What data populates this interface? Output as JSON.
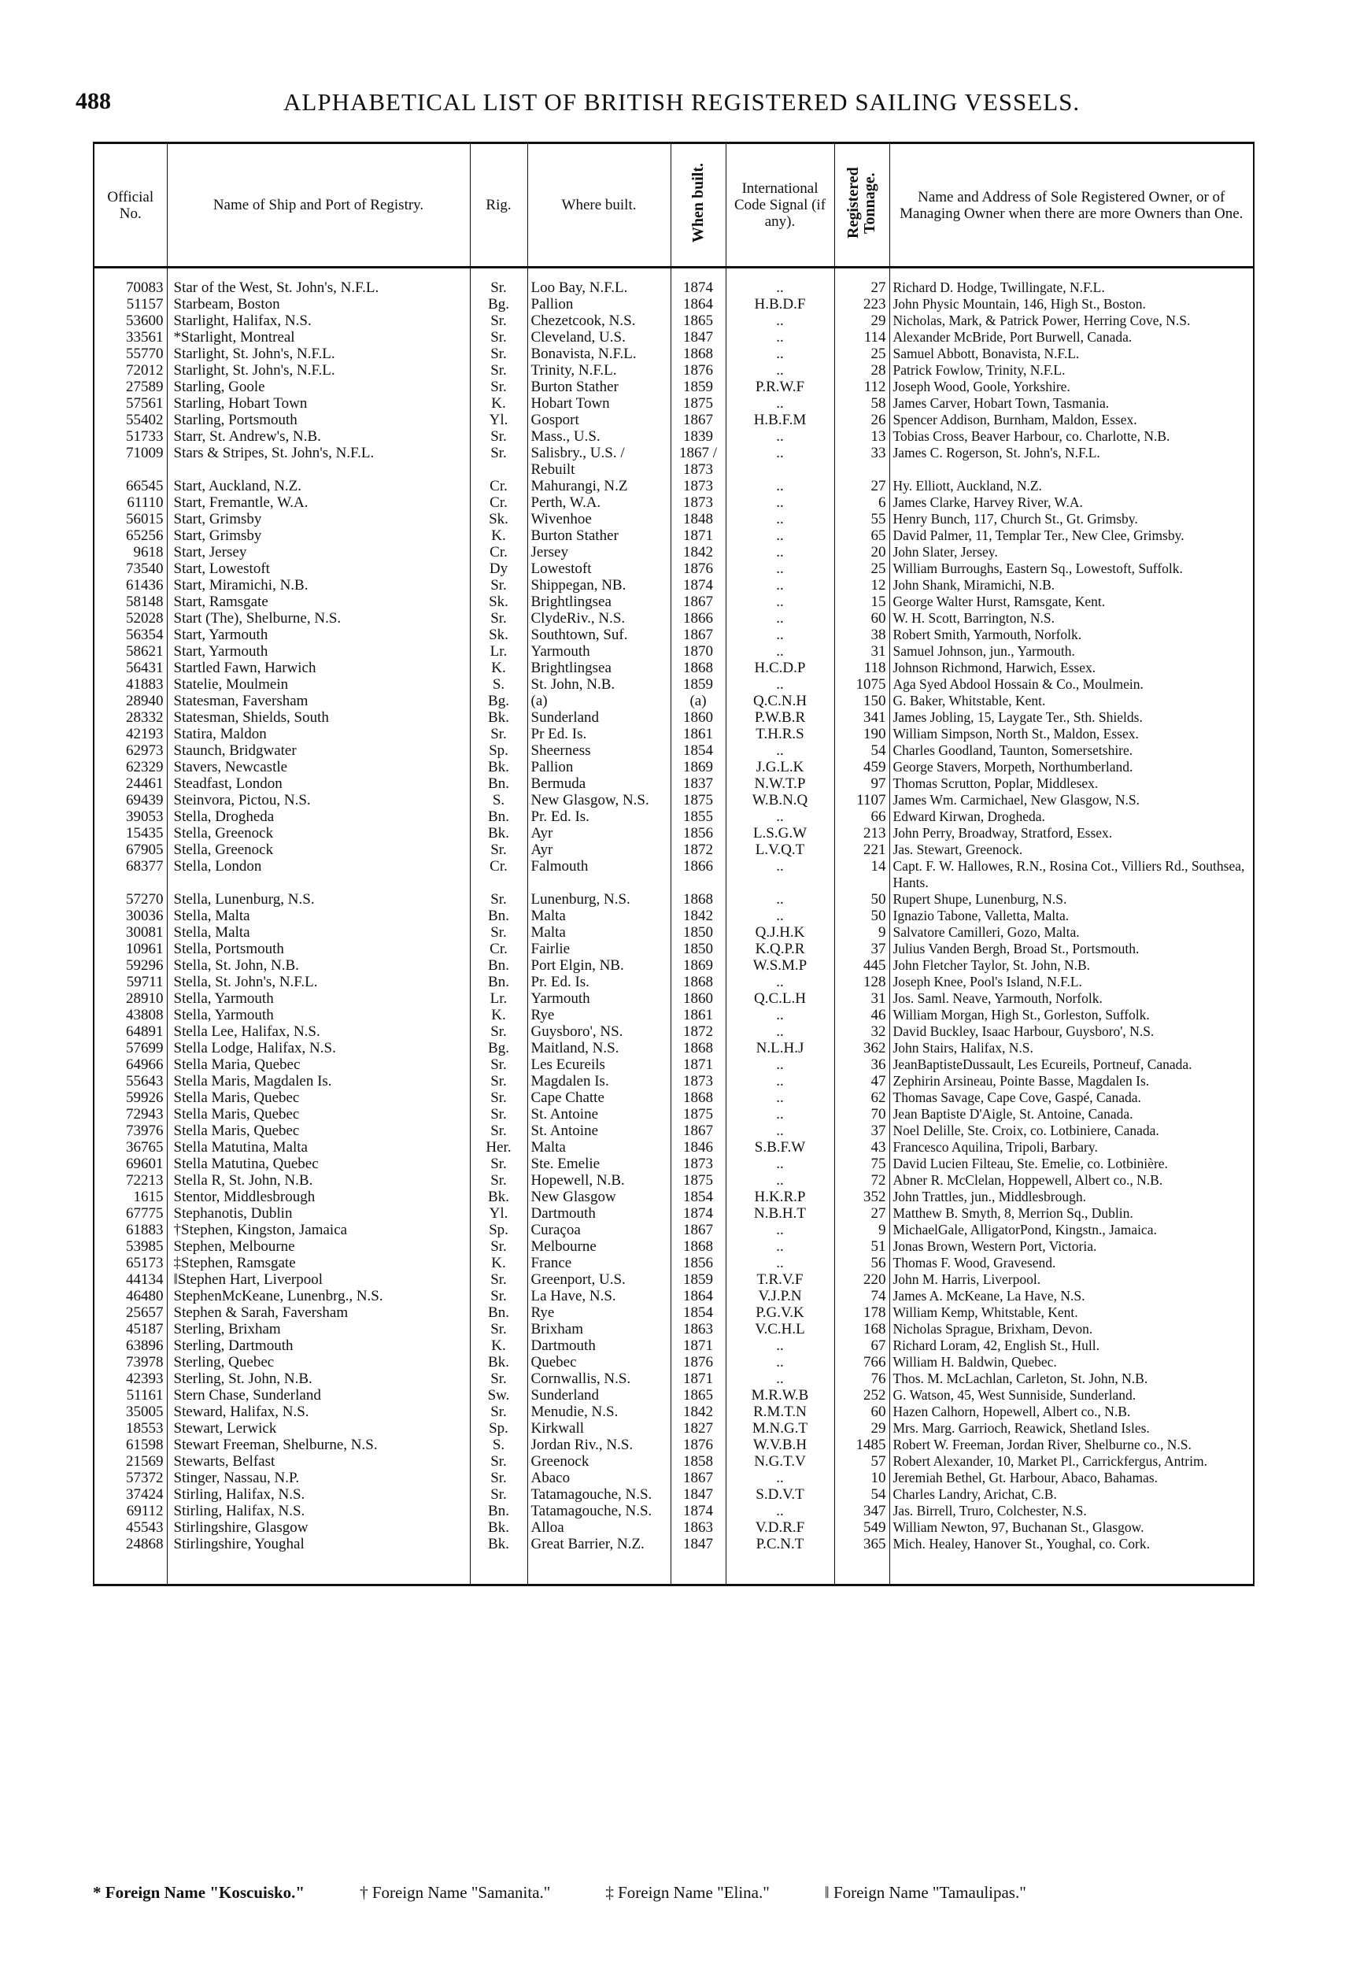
{
  "page_number": "488",
  "title": "ALPHABETICAL LIST OF BRITISH REGISTERED SAILING VESSELS.",
  "headers": {
    "official_no": "Official No.",
    "name": "Name of Ship and Port of Registry.",
    "rig": "Rig.",
    "where_built": "Where built.",
    "when_built": "When built.",
    "signal": "International Code Signal (if any).",
    "tonnage": "Registered Tonnage.",
    "owner": "Name and Address of Sole Registered Owner, or of Managing Owner when there are more Owners than One."
  },
  "rows": [
    [
      "70083",
      "Star of the West, St. John's, N.F.L.",
      "Sr.",
      "Loo Bay, N.F.L.",
      "1874",
      "..",
      "27",
      "Richard D. Hodge, Twillingate, N.F.L."
    ],
    [
      "51157",
      "Starbeam, Boston",
      "Bg.",
      "Pallion",
      "1864",
      "H.B.D.F",
      "223",
      "John Physic Mountain, 146, High St., Boston."
    ],
    [
      "53600",
      "Starlight, Halifax, N.S.",
      "Sr.",
      "Chezetcook, N.S.",
      "1865",
      "..",
      "29",
      "Nicholas, Mark, & Patrick Power, Herring Cove, N.S."
    ],
    [
      "33561",
      "*Starlight, Montreal",
      "Sr.",
      "Cleveland, U.S.",
      "1847",
      "..",
      "114",
      "Alexander McBride, Port Burwell, Canada."
    ],
    [
      "55770",
      "Starlight, St. John's, N.F.L.",
      "Sr.",
      "Bonavista, N.F.L.",
      "1868",
      "..",
      "25",
      "Samuel Abbott, Bonavista, N.F.L."
    ],
    [
      "72012",
      "Starlight, St. John's, N.F.L.",
      "Sr.",
      "Trinity, N.F.L.",
      "1876",
      "..",
      "28",
      "Patrick Fowlow, Trinity, N.F.L."
    ],
    [
      "27589",
      "Starling, Goole",
      "Sr.",
      "Burton Stather",
      "1859",
      "P.R.W.F",
      "112",
      "Joseph Wood, Goole, Yorkshire."
    ],
    [
      "57561",
      "Starling, Hobart Town",
      "K.",
      "Hobart Town",
      "1875",
      "..",
      "58",
      "James Carver, Hobart Town, Tasmania."
    ],
    [
      "55402",
      "Starling, Portsmouth",
      "Yl.",
      "Gosport",
      "1867",
      "H.B.F.M",
      "26",
      "Spencer Addison, Burnham, Maldon, Essex."
    ],
    [
      "51733",
      "Starr, St. Andrew's, N.B.",
      "Sr.",
      "Mass., U.S.",
      "1839",
      "..",
      "13",
      "Tobias Cross, Beaver Harbour, co. Charlotte, N.B."
    ],
    [
      "71009",
      "Stars & Stripes, St. John's, N.F.L.",
      "Sr.",
      "Salisbry., U.S. / Rebuilt",
      "1867 / 1873",
      "..",
      "33",
      "James C. Rogerson, St. John's, N.F.L."
    ],
    [
      "66545",
      "Start, Auckland, N.Z.",
      "Cr.",
      "Mahurangi, N.Z",
      "1873",
      "..",
      "27",
      "Hy. Elliott, Auckland, N.Z."
    ],
    [
      "61110",
      "Start, Fremantle, W.A.",
      "Cr.",
      "Perth, W.A.",
      "1873",
      "..",
      "6",
      "James Clarke, Harvey River, W.A."
    ],
    [
      "56015",
      "Start, Grimsby",
      "Sk.",
      "Wivenhoe",
      "1848",
      "..",
      "55",
      "Henry Bunch, 117, Church St., Gt. Grimsby."
    ],
    [
      "65256",
      "Start, Grimsby",
      "K.",
      "Burton Stather",
      "1871",
      "..",
      "65",
      "David Palmer, 11, Templar Ter., New Clee, Grimsby."
    ],
    [
      "9618",
      "Start, Jersey",
      "Cr.",
      "Jersey",
      "1842",
      "..",
      "20",
      "John Slater, Jersey."
    ],
    [
      "73540",
      "Start, Lowestoft",
      "Dy",
      "Lowestoft",
      "1876",
      "..",
      "25",
      "William Burroughs, Eastern Sq., Lowestoft, Suffolk."
    ],
    [
      "61436",
      "Start, Miramichi, N.B.",
      "Sr.",
      "Shippegan, NB.",
      "1874",
      "..",
      "12",
      "John Shank, Miramichi, N.B."
    ],
    [
      "58148",
      "Start, Ramsgate",
      "Sk.",
      "Brightlingsea",
      "1867",
      "..",
      "15",
      "George Walter Hurst, Ramsgate, Kent."
    ],
    [
      "52028",
      "Start (The), Shelburne, N.S.",
      "Sr.",
      "ClydeRiv., N.S.",
      "1866",
      "..",
      "60",
      "W. H. Scott, Barrington, N.S."
    ],
    [
      "56354",
      "Start, Yarmouth",
      "Sk.",
      "Southtown, Suf.",
      "1867",
      "..",
      "38",
      "Robert Smith, Yarmouth, Norfolk."
    ],
    [
      "58621",
      "Start, Yarmouth",
      "Lr.",
      "Yarmouth",
      "1870",
      "..",
      "31",
      "Samuel Johnson, jun., Yarmouth."
    ],
    [
      "56431",
      "Startled Fawn, Harwich",
      "K.",
      "Brightlingsea",
      "1868",
      "H.C.D.P",
      "118",
      "Johnson Richmond, Harwich, Essex."
    ],
    [
      "41883",
      "Statelie, Moulmein",
      "S.",
      "St. John, N.B.",
      "1859",
      "..",
      "1075",
      "Aga Syed Abdool Hossain & Co., Moulmein."
    ],
    [
      "28940",
      "Statesman, Faversham",
      "Bg.",
      "(a)",
      "(a)",
      "Q.C.N.H",
      "150",
      "G. Baker, Whitstable, Kent."
    ],
    [
      "28332",
      "Statesman, Shields, South",
      "Bk.",
      "Sunderland",
      "1860",
      "P.W.B.R",
      "341",
      "James Jobling, 15, Laygate Ter., Sth. Shields."
    ],
    [
      "42193",
      "Statira, Maldon",
      "Sr.",
      "Pr Ed. Is.",
      "1861",
      "T.H.R.S",
      "190",
      "William Simpson, North St., Maldon, Essex."
    ],
    [
      "62973",
      "Staunch, Bridgwater",
      "Sp.",
      "Sheerness",
      "1854",
      "..",
      "54",
      "Charles Goodland, Taunton, Somersetshire."
    ],
    [
      "62329",
      "Stavers, Newcastle",
      "Bk.",
      "Pallion",
      "1869",
      "J.G.L.K",
      "459",
      "George Stavers, Morpeth, Northumberland."
    ],
    [
      "24461",
      "Steadfast, London",
      "Bn.",
      "Bermuda",
      "1837",
      "N.W.T.P",
      "97",
      "Thomas Scrutton, Poplar, Middlesex."
    ],
    [
      "69439",
      "Steinvora, Pictou, N.S.",
      "S.",
      "New Glasgow, N.S.",
      "1875",
      "W.B.N.Q",
      "1107",
      "James Wm. Carmichael, New Glasgow, N.S."
    ],
    [
      "39053",
      "Stella, Drogheda",
      "Bn.",
      "Pr. Ed. Is.",
      "1855",
      "..",
      "66",
      "Edward Kirwan, Drogheda."
    ],
    [
      "15435",
      "Stella, Greenock",
      "Bk.",
      "Ayr",
      "1856",
      "L.S.G.W",
      "213",
      "John Perry, Broadway, Stratford, Essex."
    ],
    [
      "67905",
      "Stella, Greenock",
      "Sr.",
      "Ayr",
      "1872",
      "L.V.Q.T",
      "221",
      "Jas. Stewart, Greenock."
    ],
    [
      "68377",
      "Stella, London",
      "Cr.",
      "Falmouth",
      "1866",
      "..",
      "14",
      "Capt. F. W. Hallowes, R.N., Rosina Cot., Villiers Rd., Southsea, Hants."
    ],
    [
      "57270",
      "Stella, Lunenburg, N.S.",
      "Sr.",
      "Lunenburg, N.S.",
      "1868",
      "..",
      "50",
      "Rupert Shupe, Lunenburg, N.S."
    ],
    [
      "30036",
      "Stella, Malta",
      "Bn.",
      "Malta",
      "1842",
      "..",
      "50",
      "Ignazio Tabone, Valletta, Malta."
    ],
    [
      "30081",
      "Stella, Malta",
      "Sr.",
      "Malta",
      "1850",
      "Q.J.H.K",
      "9",
      "Salvatore Camilleri, Gozo, Malta."
    ],
    [
      "10961",
      "Stella, Portsmouth",
      "Cr.",
      "Fairlie",
      "1850",
      "K.Q.P.R",
      "37",
      "Julius Vanden Bergh, Broad St., Portsmouth."
    ],
    [
      "59296",
      "Stella, St. John, N.B.",
      "Bn.",
      "Port Elgin, NB.",
      "1869",
      "W.S.M.P",
      "445",
      "John Fletcher Taylor, St. John, N.B."
    ],
    [
      "59711",
      "Stella, St. John's, N.F.L.",
      "Bn.",
      "Pr. Ed. Is.",
      "1868",
      "..",
      "128",
      "Joseph Knee, Pool's Island, N.F.L."
    ],
    [
      "28910",
      "Stella, Yarmouth",
      "Lr.",
      "Yarmouth",
      "1860",
      "Q.C.L.H",
      "31",
      "Jos. Saml. Neave, Yarmouth, Norfolk."
    ],
    [
      "43808",
      "Stella, Yarmouth",
      "K.",
      "Rye",
      "1861",
      "..",
      "46",
      "William Morgan, High St., Gorleston, Suffolk."
    ],
    [
      "64891",
      "Stella Lee, Halifax, N.S.",
      "Sr.",
      "Guysboro', NS.",
      "1872",
      "..",
      "32",
      "David Buckley, Isaac Harbour, Guysboro', N.S."
    ],
    [
      "57699",
      "Stella Lodge, Halifax, N.S.",
      "Bg.",
      "Maitland, N.S.",
      "1868",
      "N.L.H.J",
      "362",
      "John Stairs, Halifax, N.S."
    ],
    [
      "64966",
      "Stella Maria, Quebec",
      "Sr.",
      "Les Ecureils",
      "1871",
      "..",
      "36",
      "JeanBaptisteDussault, Les Ecureils, Portneuf, Canada."
    ],
    [
      "55643",
      "Stella Maris, Magdalen Is.",
      "Sr.",
      "Magdalen Is.",
      "1873",
      "..",
      "47",
      "Zephirin Arsineau, Pointe Basse, Magdalen Is."
    ],
    [
      "59926",
      "Stella Maris, Quebec",
      "Sr.",
      "Cape Chatte",
      "1868",
      "..",
      "62",
      "Thomas Savage, Cape Cove, Gaspé, Canada."
    ],
    [
      "72943",
      "Stella Maris, Quebec",
      "Sr.",
      "St. Antoine",
      "1875",
      "..",
      "70",
      "Jean Baptiste D'Aigle, St. Antoine, Canada."
    ],
    [
      "73976",
      "Stella Maris, Quebec",
      "Sr.",
      "St. Antoine",
      "1867",
      "..",
      "37",
      "Noel Delille, Ste. Croix, co. Lotbiniere, Canada."
    ],
    [
      "36765",
      "Stella Matutina, Malta",
      "Her.",
      "Malta",
      "1846",
      "S.B.F.W",
      "43",
      "Francesco Aquilina, Tripoli, Barbary."
    ],
    [
      "69601",
      "Stella Matutina, Quebec",
      "Sr.",
      "Ste. Emelie",
      "1873",
      "..",
      "75",
      "David Lucien Filteau, Ste. Emelie, co. Lotbinière."
    ],
    [
      "72213",
      "Stella R, St. John, N.B.",
      "Sr.",
      "Hopewell, N.B.",
      "1875",
      "..",
      "72",
      "Abner R. McClelan, Hoppewell, Albert co., N.B."
    ],
    [
      "1615",
      "Stentor, Middlesbrough",
      "Bk.",
      "New Glasgow",
      "1854",
      "H.K.R.P",
      "352",
      "John Trattles, jun., Middlesbrough."
    ],
    [
      "67775",
      "Stephanotis, Dublin",
      "Yl.",
      "Dartmouth",
      "1874",
      "N.B.H.T",
      "27",
      "Matthew B. Smyth, 8, Merrion Sq., Dublin."
    ],
    [
      "61883",
      "†Stephen, Kingston, Jamaica",
      "Sp.",
      "Curaçoa",
      "1867",
      "..",
      "9",
      "MichaelGale, AlligatorPond, Kingstn., Jamaica."
    ],
    [
      "53985",
      "Stephen, Melbourne",
      "Sr.",
      "Melbourne",
      "1868",
      "..",
      "51",
      "Jonas Brown, Western Port, Victoria."
    ],
    [
      "65173",
      "‡Stephen, Ramsgate",
      "K.",
      "France",
      "1856",
      "..",
      "56",
      "Thomas F. Wood, Gravesend."
    ],
    [
      "44134",
      "‖Stephen Hart, Liverpool",
      "Sr.",
      "Greenport, U.S.",
      "1859",
      "T.R.V.F",
      "220",
      "John M. Harris, Liverpool."
    ],
    [
      "46480",
      "StephenMcKeane, Lunenbrg., N.S.",
      "Sr.",
      "La Have, N.S.",
      "1864",
      "V.J.P.N",
      "74",
      "James A. McKeane, La Have, N.S."
    ],
    [
      "25657",
      "Stephen & Sarah, Faversham",
      "Bn.",
      "Rye",
      "1854",
      "P.G.V.K",
      "178",
      "William Kemp, Whitstable, Kent."
    ],
    [
      "45187",
      "Sterling, Brixham",
      "Sr.",
      "Brixham",
      "1863",
      "V.C.H.L",
      "168",
      "Nicholas Sprague, Brixham, Devon."
    ],
    [
      "63896",
      "Sterling, Dartmouth",
      "K.",
      "Dartmouth",
      "1871",
      "..",
      "67",
      "Richard Loram, 42, English St., Hull."
    ],
    [
      "73978",
      "Sterling, Quebec",
      "Bk.",
      "Quebec",
      "1876",
      "..",
      "766",
      "William H. Baldwin, Quebec."
    ],
    [
      "42393",
      "Sterling, St. John, N.B.",
      "Sr.",
      "Cornwallis, N.S.",
      "1871",
      "..",
      "76",
      "Thos. M. McLachlan, Carleton, St. John, N.B."
    ],
    [
      "51161",
      "Stern Chase, Sunderland",
      "Sw.",
      "Sunderland",
      "1865",
      "M.R.W.B",
      "252",
      "G. Watson, 45, West Sunniside, Sunderland."
    ],
    [
      "35005",
      "Steward, Halifax, N.S.",
      "Sr.",
      "Menudie, N.S.",
      "1842",
      "R.M.T.N",
      "60",
      "Hazen Calhorn, Hopewell, Albert co., N.B."
    ],
    [
      "18553",
      "Stewart, Lerwick",
      "Sp.",
      "Kirkwall",
      "1827",
      "M.N.G.T",
      "29",
      "Mrs. Marg. Garrioch, Reawick, Shetland Isles."
    ],
    [
      "61598",
      "Stewart Freeman, Shelburne, N.S.",
      "S.",
      "Jordan Riv., N.S.",
      "1876",
      "W.V.B.H",
      "1485",
      "Robert W. Freeman, Jordan River, Shelburne co., N.S."
    ],
    [
      "21569",
      "Stewarts, Belfast",
      "Sr.",
      "Greenock",
      "1858",
      "N.G.T.V",
      "57",
      "Robert Alexander, 10, Market Pl., Carrickfergus, Antrim."
    ],
    [
      "57372",
      "Stinger, Nassau, N.P.",
      "Sr.",
      "Abaco",
      "1867",
      "..",
      "10",
      "Jeremiah Bethel, Gt. Harbour, Abaco, Bahamas."
    ],
    [
      "37424",
      "Stirling, Halifax, N.S.",
      "Sr.",
      "Tatamagouche, N.S.",
      "1847",
      "S.D.V.T",
      "54",
      "Charles Landry, Arichat, C.B."
    ],
    [
      "69112",
      "Stirling, Halifax, N.S.",
      "Bn.",
      "Tatamagouche, N.S.",
      "1874",
      "..",
      "347",
      "Jas. Birrell, Truro, Colchester, N.S."
    ],
    [
      "45543",
      "Stirlingshire, Glasgow",
      "Bk.",
      "Alloa",
      "1863",
      "V.D.R.F",
      "549",
      "William Newton, 97, Buchanan St., Glasgow."
    ],
    [
      "24868",
      "Stirlingshire, Youghal",
      "Bk.",
      "Great Barrier, N.Z.",
      "1847",
      "P.C.N.T",
      "365",
      "Mich. Healey, Hanover St., Youghal, co. Cork."
    ]
  ],
  "footnotes": [
    "* Foreign Name \"Koscuisko.\"",
    "† Foreign Name \"Samanita.\"",
    "‡ Foreign Name \"Elina.\"",
    "‖ Foreign Name \"Tamaulipas.\""
  ]
}
